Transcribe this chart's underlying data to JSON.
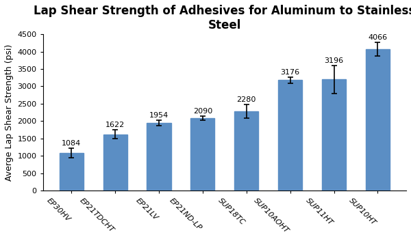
{
  "categories": [
    "EP30HV",
    "EP21TDCHT",
    "EP21LV",
    "EP21ND-LP",
    "SUP18TC",
    "SUP10AOHT",
    "SUP11HT",
    "SUP10HT"
  ],
  "values": [
    1084,
    1622,
    1954,
    2090,
    2280,
    3176,
    3196,
    4066
  ],
  "errors": [
    130,
    120,
    80,
    60,
    200,
    80,
    400,
    200
  ],
  "bar_color": "#5b8ec4",
  "title_line1": "Lap Shear Strength of Adhesives for Aluminum to Stainless",
  "title_line2": "Steel",
  "ylabel": "Averge Lap Shear Strength (psi)",
  "ylim": [
    0,
    4500
  ],
  "yticks": [
    0,
    500,
    1000,
    1500,
    2000,
    2500,
    3000,
    3500,
    4000,
    4500
  ],
  "title_fontsize": 12,
  "label_fontsize": 9,
  "tick_fontsize": 8,
  "value_fontsize": 8,
  "background_color": "#ffffff"
}
